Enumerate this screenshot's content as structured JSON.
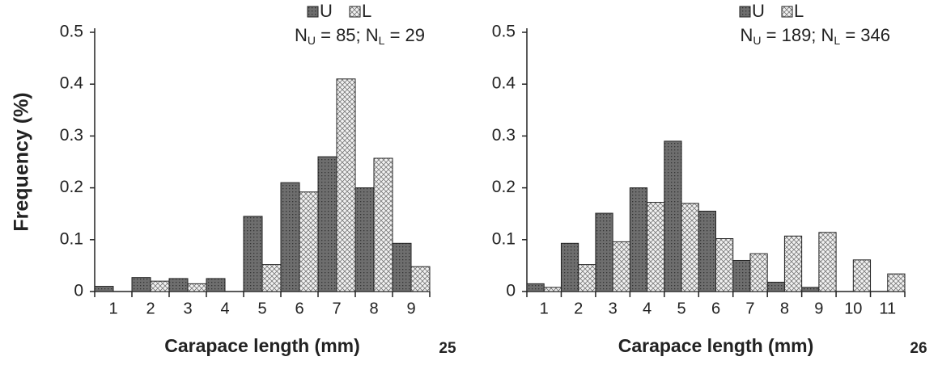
{
  "chart_data": [
    {
      "type": "bar",
      "panel_label": "25",
      "ylabel": "Frequency (%)",
      "xlabel": "Carapace length (mm)",
      "categories": [
        "1",
        "2",
        "3",
        "4",
        "5",
        "6",
        "7",
        "8",
        "9"
      ],
      "series": [
        {
          "name": "U",
          "color": "#6e6e6e",
          "values": [
            0.01,
            0.027,
            0.025,
            0.025,
            0.145,
            0.21,
            0.26,
            0.2,
            0.093
          ]
        },
        {
          "name": "L",
          "color": "#d8d8d8",
          "values": [
            0,
            0.02,
            0.015,
            0,
            0.052,
            0.192,
            0.41,
            0.257,
            0.048
          ]
        }
      ],
      "annotation": [
        {
          "text": "N"
        },
        {
          "text": "U",
          "sub": true
        },
        {
          "text": " = 85; N"
        },
        {
          "text": "L",
          "sub": true
        },
        {
          "text": " = 29"
        }
      ],
      "ylim": [
        0,
        0.5
      ],
      "yticks": [
        0,
        0.1,
        0.2,
        0.3,
        0.4,
        0.5
      ]
    },
    {
      "type": "bar",
      "panel_label": "26",
      "xlabel": "Carapace length (mm)",
      "categories": [
        "1",
        "2",
        "3",
        "4",
        "5",
        "6",
        "7",
        "8",
        "9",
        "10",
        "11"
      ],
      "series": [
        {
          "name": "U",
          "color": "#6e6e6e",
          "values": [
            0.015,
            0.093,
            0.151,
            0.2,
            0.29,
            0.155,
            0.06,
            0.018,
            0.008,
            0,
            0
          ]
        },
        {
          "name": "L",
          "color": "#d8d8d8",
          "values": [
            0.008,
            0.052,
            0.096,
            0.172,
            0.17,
            0.102,
            0.073,
            0.107,
            0.114,
            0.061,
            0.034
          ]
        }
      ],
      "annotation": [
        {
          "text": "N"
        },
        {
          "text": "U",
          "sub": true
        },
        {
          "text": " = 189; N"
        },
        {
          "text": "L",
          "sub": true
        },
        {
          "text": " = 346"
        }
      ],
      "ylim": [
        0,
        0.5
      ],
      "yticks": [
        0,
        0.1,
        0.2,
        0.3,
        0.4,
        0.5
      ]
    }
  ]
}
